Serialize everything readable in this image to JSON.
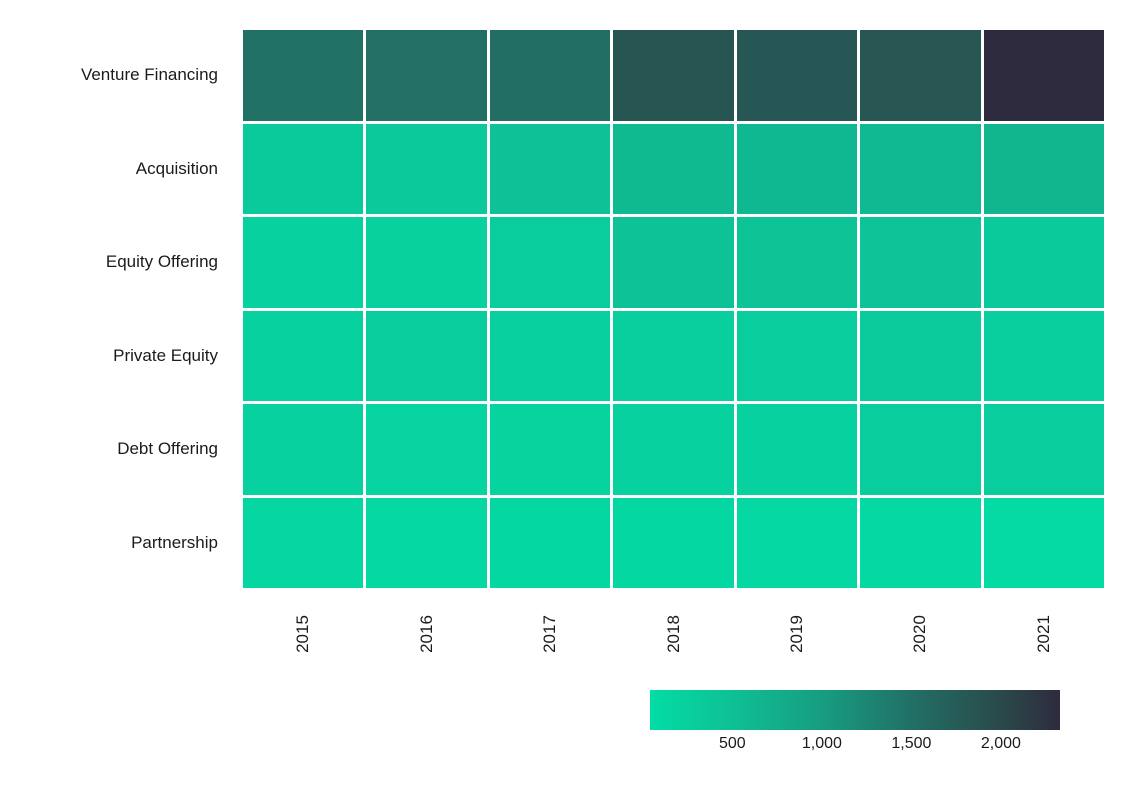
{
  "chart_data": {
    "type": "heatmap",
    "title": "",
    "xlabel": "",
    "ylabel": "",
    "rows": [
      "Venture Financing",
      "Acquisition",
      "Equity Offering",
      "Private Equity",
      "Debt Offering",
      "Partnership"
    ],
    "columns": [
      "2015",
      "2016",
      "2017",
      "2018",
      "2019",
      "2020",
      "2021"
    ],
    "values": [
      [
        1500,
        1510,
        1530,
        1840,
        1820,
        1830,
        2330
      ],
      [
        350,
        360,
        480,
        590,
        610,
        600,
        640
      ],
      [
        220,
        230,
        300,
        460,
        440,
        445,
        340
      ],
      [
        210,
        300,
        250,
        270,
        285,
        330,
        270
      ],
      [
        210,
        190,
        205,
        225,
        220,
        300,
        290
      ],
      [
        150,
        120,
        135,
        135,
        120,
        125,
        70
      ]
    ],
    "color_scale": {
      "min": 40,
      "max": 2330,
      "stops": [
        {
          "t": 0.0,
          "color": "#03DDA5"
        },
        {
          "t": 0.2,
          "color": "#0EC095"
        },
        {
          "t": 0.42,
          "color": "#179D81"
        },
        {
          "t": 0.63,
          "color": "#217167"
        },
        {
          "t": 0.85,
          "color": "#2A4A4A"
        },
        {
          "t": 1.0,
          "color": "#2E2B3E"
        }
      ]
    },
    "colorbar": {
      "tick_labels": [
        "500",
        "1,000",
        "1,500",
        "2,000"
      ],
      "tick_values": [
        500,
        1000,
        1500,
        2000
      ],
      "orientation": "horizontal",
      "position": "bottom-right"
    },
    "layout_hints": {
      "grid_lines": "white gaps between cells",
      "x_tick_rotation": -90,
      "background": "#ffffff"
    }
  }
}
